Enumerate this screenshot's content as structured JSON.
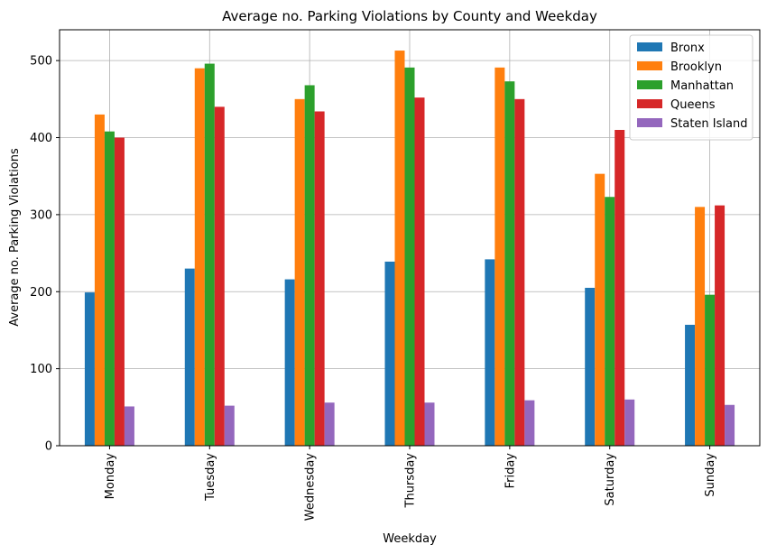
{
  "chart_data": {
    "type": "bar",
    "title": "Average no. Parking Violations by County and Weekday",
    "xlabel": "Weekday",
    "ylabel": "Average no. Parking Violations",
    "ylim": [
      0,
      540
    ],
    "yticks": [
      0,
      100,
      200,
      300,
      400,
      500
    ],
    "grid": true,
    "legend_position": "top-right",
    "categories": [
      "Monday",
      "Tuesday",
      "Wednesday",
      "Thursday",
      "Friday",
      "Saturday",
      "Sunday"
    ],
    "series": [
      {
        "name": "Bronx",
        "color": "#1f77b4",
        "values": [
          199,
          230,
          216,
          239,
          242,
          205,
          157
        ]
      },
      {
        "name": "Brooklyn",
        "color": "#ff7f0e",
        "values": [
          430,
          490,
          450,
          513,
          491,
          353,
          310
        ]
      },
      {
        "name": "Manhattan",
        "color": "#2ca02c",
        "values": [
          408,
          496,
          468,
          491,
          473,
          323,
          196
        ]
      },
      {
        "name": "Queens",
        "color": "#d62728",
        "values": [
          400,
          440,
          434,
          452,
          450,
          410,
          312
        ]
      },
      {
        "name": "Staten Island",
        "color": "#9467bd",
        "values": [
          51,
          52,
          56,
          56,
          59,
          60,
          53
        ]
      }
    ]
  }
}
